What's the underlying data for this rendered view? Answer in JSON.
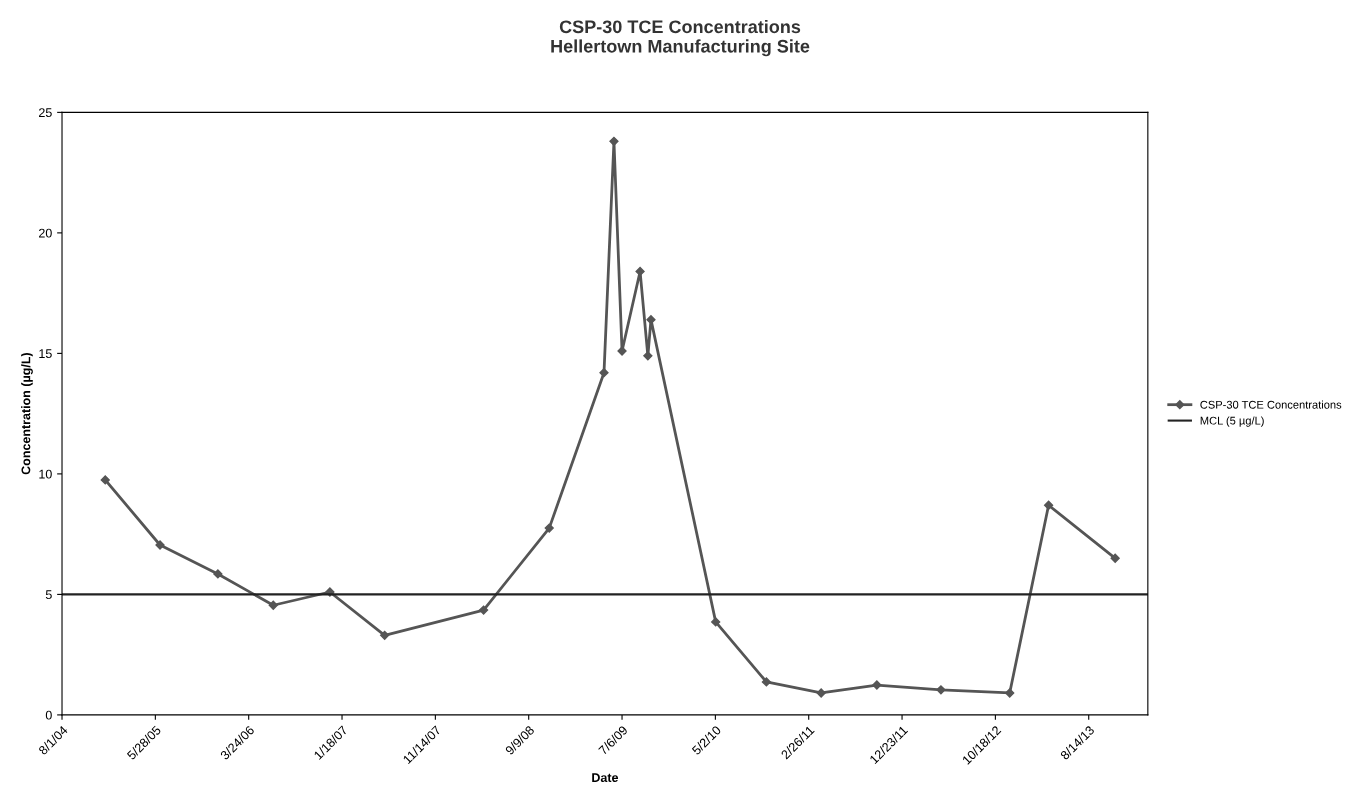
{
  "chart_data": {
    "type": "line",
    "title": "CSP-30 TCE Concentrations\nHellertown Manufacturing Site",
    "xlabel": "Date",
    "ylabel": "Concentration (µg/L)",
    "x": [
      "2004-12-18",
      "2005-06-12",
      "2005-12-15",
      "2006-06-11",
      "2006-12-10",
      "2007-06-04",
      "2008-04-17",
      "2008-11-14",
      "2009-05-09",
      "2009-06-10",
      "2009-07-06",
      "2009-09-02",
      "2009-09-27",
      "2009-10-07",
      "2010-05-03",
      "2010-10-13",
      "2011-04-07",
      "2011-10-03",
      "2012-04-26",
      "2012-12-03",
      "2013-04-07",
      "2013-11-07"
    ],
    "series": [
      {
        "name": "CSP-30 TCE Concentrations",
        "color": "#555555",
        "values": [
          9.75,
          7.05,
          5.85,
          4.55,
          5.1,
          3.3,
          4.35,
          7.75,
          14.2,
          23.8,
          15.1,
          18.4,
          14.9,
          16.4,
          3.86,
          1.37,
          0.91,
          1.24,
          1.04,
          0.91,
          8.7,
          6.5
        ]
      }
    ],
    "ref_lines": [
      {
        "axis": "y",
        "value": 5,
        "label": "MCL (5 µg/L)",
        "color": "#222222",
        "line_style": "solid"
      }
    ],
    "xlim": [
      "2004-08-01",
      "2014-02-20"
    ],
    "xticks": [
      {
        "value": "2004-08-01",
        "label": "8/1/04"
      },
      {
        "value": "2005-05-28",
        "label": "5/28/05"
      },
      {
        "value": "2006-03-24",
        "label": "3/24/06"
      },
      {
        "value": "2007-01-18",
        "label": "1/18/07"
      },
      {
        "value": "2007-11-14",
        "label": "11/14/07"
      },
      {
        "value": "2008-09-09",
        "label": "9/9/08"
      },
      {
        "value": "2009-07-06",
        "label": "7/6/09"
      },
      {
        "value": "2010-05-02",
        "label": "5/2/10"
      },
      {
        "value": "2011-02-26",
        "label": "2/26/11"
      },
      {
        "value": "2011-12-23",
        "label": "12/23/11"
      },
      {
        "value": "2012-10-18",
        "label": "10/18/12"
      },
      {
        "value": "2013-08-14",
        "label": "8/14/13"
      }
    ],
    "ylim": [
      0,
      25
    ],
    "yticks": [
      0,
      5,
      10,
      15,
      20,
      25
    ],
    "marker": "diamond",
    "line_style": "solid",
    "grid": false,
    "legend": "right"
  }
}
